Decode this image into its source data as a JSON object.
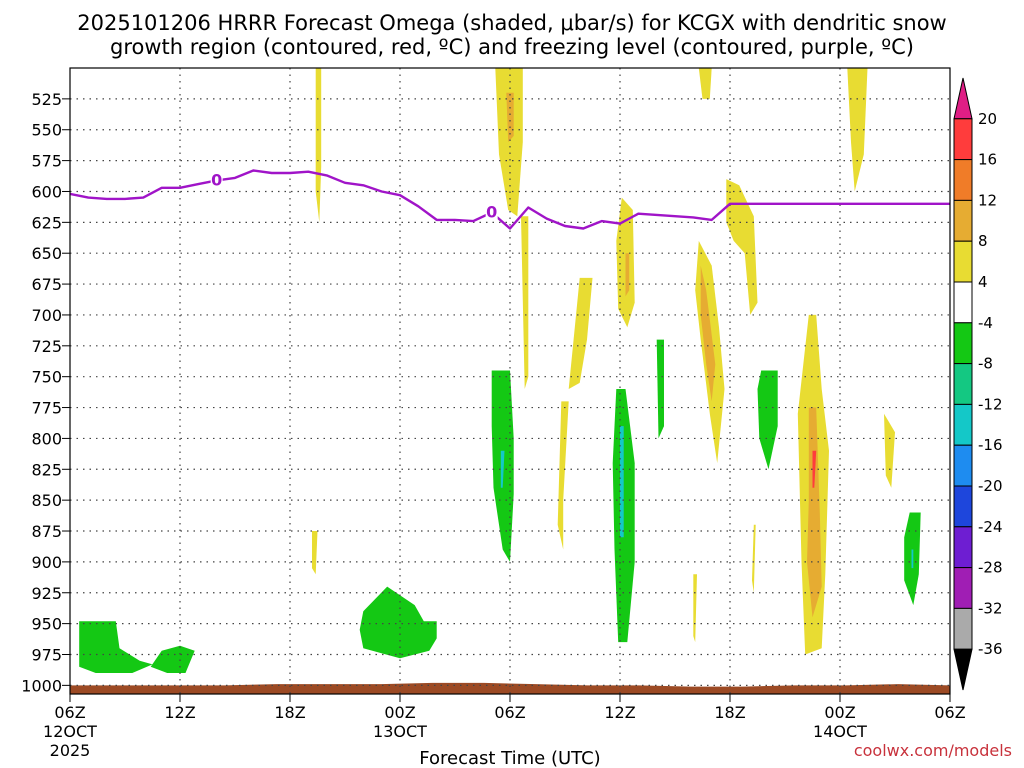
{
  "chart_data": {
    "type": "contour-time-height",
    "title_line1": "2025101206 HRRR Forecast Omega (shaded, μbar/s) for KCGX with dendritic snow",
    "title_line2": "growth region (contoured, red, ºC) and freezing level (contoured, purple, ºC)",
    "xlabel": "Forecast Time (UTC)",
    "credit": "coolwx.com/models",
    "y_axis": {
      "unit": "hPa",
      "range": [
        1007,
        500
      ],
      "ticks": [
        525,
        550,
        575,
        600,
        625,
        650,
        675,
        700,
        725,
        750,
        775,
        800,
        825,
        850,
        875,
        900,
        925,
        950,
        975,
        1000
      ]
    },
    "x_axis": {
      "range_hours": [
        0,
        48
      ],
      "ticks": [
        {
          "h": 0,
          "label": "06Z",
          "date": "12OCT",
          "year": "2025"
        },
        {
          "h": 6,
          "label": "12Z",
          "date": "",
          "year": ""
        },
        {
          "h": 12,
          "label": "18Z",
          "date": "",
          "year": ""
        },
        {
          "h": 18,
          "label": "00Z",
          "date": "13OCT",
          "year": ""
        },
        {
          "h": 24,
          "label": "06Z",
          "date": "",
          "year": ""
        },
        {
          "h": 30,
          "label": "12Z",
          "date": "",
          "year": ""
        },
        {
          "h": 36,
          "label": "18Z",
          "date": "",
          "year": ""
        },
        {
          "h": 42,
          "label": "00Z",
          "date": "14OCT",
          "year": ""
        },
        {
          "h": 48,
          "label": "06Z",
          "date": "",
          "year": ""
        }
      ]
    },
    "colorbar": {
      "labels": [
        "20",
        "16",
        "12",
        "8",
        "4",
        "-4",
        "-8",
        "-12",
        "-16",
        "-20",
        "-24",
        "-28",
        "-32",
        "-36"
      ],
      "colors": [
        "#e01e85",
        "#ff3c3c",
        "#f07c28",
        "#e6ac32",
        "#e8dc32",
        "#ffffff",
        "#14c814",
        "#14c882",
        "#14c8c8",
        "#1e8cf0",
        "#1e46dc",
        "#6e1ed2",
        "#a01eb4",
        "#aaaaaa",
        "#000000"
      ]
    },
    "freezing_level": {
      "label": "0",
      "color": "#a014c8",
      "hours": [
        0,
        1,
        2,
        3,
        4,
        5,
        6,
        7,
        8,
        9,
        10,
        11,
        12,
        13,
        14,
        15,
        16,
        17,
        18,
        19,
        20,
        21,
        22,
        23,
        24,
        25,
        26,
        27,
        28,
        29,
        30,
        31,
        32,
        33,
        34,
        35,
        36,
        37,
        38,
        39,
        40,
        41,
        42,
        43,
        44,
        45,
        46,
        47,
        48
      ],
      "pressure": [
        602,
        605,
        606,
        606,
        605,
        597,
        597,
        594,
        591,
        589,
        583,
        585,
        585,
        584,
        587,
        593,
        595,
        600,
        603,
        612,
        623,
        623,
        624,
        617,
        630,
        613,
        622,
        628,
        630,
        624,
        626,
        618,
        619,
        620,
        621,
        623,
        610,
        610,
        610,
        610,
        610,
        610,
        610,
        610,
        610,
        610,
        610,
        610,
        610
      ]
    },
    "shaded_regions": [
      {
        "color": "#e8dc32",
        "points": [
          [
            23.2,
            500
          ],
          [
            24.7,
            500
          ],
          [
            24.7,
            560
          ],
          [
            24.4,
            620
          ],
          [
            23.9,
            615
          ],
          [
            23.4,
            570
          ]
        ]
      },
      {
        "color": "#e6ac32",
        "points": [
          [
            23.8,
            520
          ],
          [
            24.2,
            520
          ],
          [
            24.2,
            555
          ],
          [
            23.9,
            560
          ]
        ]
      },
      {
        "color": "#e8dc32",
        "points": [
          [
            13.4,
            500
          ],
          [
            13.7,
            500
          ],
          [
            13.7,
            580
          ],
          [
            13.6,
            625
          ],
          [
            13.4,
            600
          ]
        ]
      },
      {
        "color": "#e8dc32",
        "points": [
          [
            24.6,
            620
          ],
          [
            25.0,
            620
          ],
          [
            25.0,
            750
          ],
          [
            24.8,
            760
          ]
        ]
      },
      {
        "color": "#e8dc32",
        "points": [
          [
            34.3,
            500
          ],
          [
            35.0,
            500
          ],
          [
            34.9,
            525
          ],
          [
            34.5,
            525
          ]
        ]
      },
      {
        "color": "#e8dc32",
        "points": [
          [
            42.4,
            500
          ],
          [
            43.5,
            500
          ],
          [
            43.3,
            570
          ],
          [
            42.8,
            600
          ],
          [
            42.6,
            560
          ]
        ]
      },
      {
        "color": "#e8dc32",
        "points": [
          [
            35.8,
            590
          ],
          [
            36.5,
            595
          ],
          [
            37.3,
            620
          ],
          [
            37.5,
            690
          ],
          [
            37.1,
            700
          ],
          [
            36.8,
            650
          ],
          [
            36.2,
            640
          ],
          [
            35.8,
            625
          ]
        ]
      },
      {
        "color": "#e8dc32",
        "points": [
          [
            30.1,
            605
          ],
          [
            30.7,
            615
          ],
          [
            30.8,
            690
          ],
          [
            30.4,
            710
          ],
          [
            29.9,
            695
          ],
          [
            29.8,
            640
          ]
        ]
      },
      {
        "color": "#e6ac32",
        "points": [
          [
            30.3,
            650
          ],
          [
            30.5,
            650
          ],
          [
            30.5,
            680
          ],
          [
            30.3,
            685
          ]
        ]
      },
      {
        "color": "#e8dc32",
        "points": [
          [
            27.8,
            670
          ],
          [
            28.5,
            670
          ],
          [
            28.2,
            720
          ],
          [
            27.8,
            755
          ],
          [
            27.2,
            760
          ]
        ]
      },
      {
        "color": "#e8dc32",
        "points": [
          [
            34.3,
            640
          ],
          [
            35.0,
            660
          ],
          [
            35.4,
            710
          ],
          [
            35.7,
            760
          ],
          [
            35.3,
            820
          ],
          [
            34.9,
            780
          ],
          [
            34.4,
            720
          ],
          [
            34.1,
            680
          ]
        ]
      },
      {
        "color": "#e6ac32",
        "points": [
          [
            34.4,
            660
          ],
          [
            34.7,
            680
          ],
          [
            35.2,
            740
          ],
          [
            35.0,
            770
          ],
          [
            34.7,
            740
          ],
          [
            34.4,
            700
          ]
        ]
      },
      {
        "color": "#e8dc32",
        "points": [
          [
            26.8,
            770
          ],
          [
            27.2,
            770
          ],
          [
            26.9,
            850
          ],
          [
            26.9,
            890
          ],
          [
            26.6,
            870
          ]
        ]
      },
      {
        "color": "#e8dc32",
        "points": [
          [
            40.3,
            700
          ],
          [
            40.7,
            700
          ],
          [
            41.0,
            760
          ],
          [
            41.4,
            810
          ],
          [
            41.2,
            910
          ],
          [
            41.0,
            970
          ],
          [
            40.1,
            975
          ],
          [
            39.9,
            900
          ],
          [
            39.7,
            780
          ]
        ]
      },
      {
        "color": "#e6ac32",
        "points": [
          [
            40.3,
            775
          ],
          [
            40.7,
            775
          ],
          [
            40.9,
            860
          ],
          [
            41.0,
            920
          ],
          [
            40.5,
            945
          ],
          [
            40.2,
            900
          ],
          [
            40.3,
            850
          ]
        ]
      },
      {
        "color": "#ff3c3c",
        "points": [
          [
            40.5,
            810
          ],
          [
            40.7,
            810
          ],
          [
            40.6,
            840
          ],
          [
            40.5,
            840
          ]
        ]
      },
      {
        "color": "#e8dc32",
        "points": [
          [
            44.4,
            780
          ],
          [
            45.0,
            795
          ],
          [
            44.8,
            840
          ],
          [
            44.5,
            830
          ]
        ]
      },
      {
        "color": "#e8dc32",
        "points": [
          [
            13.2,
            875
          ],
          [
            13.5,
            875
          ],
          [
            13.4,
            910
          ],
          [
            13.2,
            905
          ]
        ]
      },
      {
        "color": "#e8dc32",
        "points": [
          [
            34.0,
            910
          ],
          [
            34.2,
            910
          ],
          [
            34.1,
            965
          ],
          [
            34.0,
            960
          ]
        ]
      },
      {
        "color": "#e8dc32",
        "points": [
          [
            37.3,
            870
          ],
          [
            37.4,
            870
          ],
          [
            37.3,
            925
          ],
          [
            37.2,
            915
          ]
        ]
      },
      {
        "color": "#14c814",
        "points": [
          [
            23.0,
            745
          ],
          [
            24.0,
            745
          ],
          [
            24.2,
            800
          ],
          [
            24.2,
            845
          ],
          [
            24.0,
            900
          ],
          [
            23.6,
            890
          ],
          [
            23.1,
            840
          ],
          [
            23.0,
            790
          ]
        ]
      },
      {
        "color": "#14c8c8",
        "points": [
          [
            23.5,
            810
          ],
          [
            23.7,
            810
          ],
          [
            23.6,
            840
          ],
          [
            23.5,
            840
          ]
        ]
      },
      {
        "color": "#14c814",
        "points": [
          [
            32.0,
            720
          ],
          [
            32.4,
            720
          ],
          [
            32.4,
            790
          ],
          [
            32.1,
            800
          ]
        ]
      },
      {
        "color": "#14c814",
        "points": [
          [
            29.8,
            760
          ],
          [
            30.3,
            760
          ],
          [
            30.8,
            820
          ],
          [
            30.8,
            900
          ],
          [
            30.4,
            965
          ],
          [
            29.9,
            965
          ],
          [
            29.7,
            890
          ],
          [
            29.6,
            820
          ]
        ]
      },
      {
        "color": "#14c8c8",
        "points": [
          [
            30.0,
            790
          ],
          [
            30.2,
            790
          ],
          [
            30.2,
            880
          ],
          [
            30.0,
            880
          ]
        ]
      },
      {
        "color": "#14c814",
        "points": [
          [
            37.7,
            745
          ],
          [
            38.6,
            745
          ],
          [
            38.6,
            790
          ],
          [
            38.1,
            825
          ],
          [
            37.6,
            800
          ],
          [
            37.5,
            760
          ]
        ]
      },
      {
        "color": "#14c814",
        "points": [
          [
            45.8,
            860
          ],
          [
            46.4,
            860
          ],
          [
            46.3,
            910
          ],
          [
            46.0,
            935
          ],
          [
            45.5,
            915
          ],
          [
            45.5,
            880
          ]
        ]
      },
      {
        "color": "#14c8c8",
        "points": [
          [
            45.9,
            890
          ],
          [
            46.0,
            890
          ],
          [
            46.0,
            905
          ],
          [
            45.9,
            905
          ]
        ]
      },
      {
        "color": "#14c814",
        "points": [
          [
            0.5,
            948
          ],
          [
            2.5,
            948
          ],
          [
            2.7,
            970
          ],
          [
            3.8,
            980
          ],
          [
            4.5,
            983
          ],
          [
            3.4,
            990
          ],
          [
            1.4,
            990
          ],
          [
            0.5,
            985
          ]
        ]
      },
      {
        "color": "#14c814",
        "points": [
          [
            5.0,
            972
          ],
          [
            6.0,
            968
          ],
          [
            6.8,
            972
          ],
          [
            6.3,
            990
          ],
          [
            5.3,
            990
          ],
          [
            4.4,
            985
          ]
        ]
      },
      {
        "color": "#14c814",
        "points": [
          [
            16.0,
            940
          ],
          [
            17.3,
            920
          ],
          [
            18.8,
            935
          ],
          [
            19.3,
            948
          ],
          [
            20.0,
            948
          ],
          [
            20.0,
            962
          ],
          [
            19.6,
            972
          ],
          [
            18.0,
            978
          ],
          [
            16.0,
            970
          ],
          [
            15.8,
            955
          ]
        ]
      }
    ],
    "surface": {
      "color": "#9c4a24",
      "pressure": [
        1000,
        1000,
        1000,
        1000,
        999,
        999,
        999,
        998,
        998,
        999,
        1000,
        1000,
        1001,
        1001,
        1000,
        1000,
        999,
        1000
      ]
    }
  }
}
